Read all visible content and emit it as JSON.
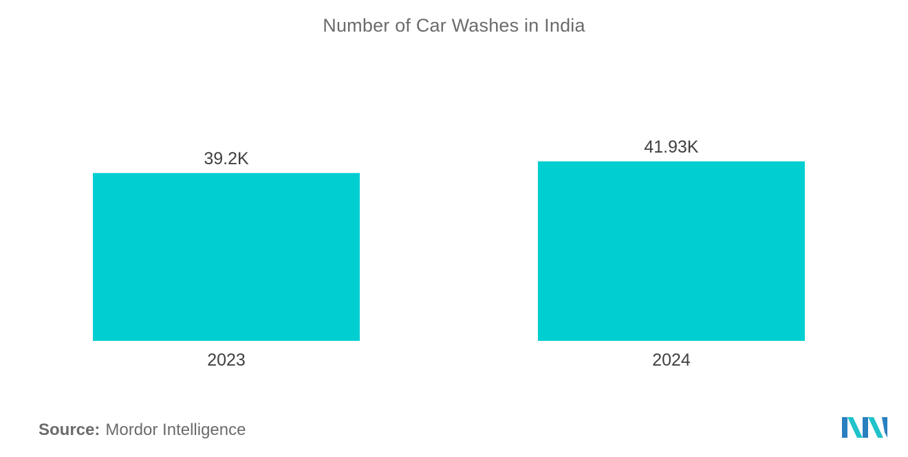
{
  "chart_data": {
    "type": "bar",
    "title": "Number of Car Washes in India",
    "categories": [
      "2023",
      "2024"
    ],
    "values": [
      39.2,
      41.93
    ],
    "value_labels": [
      "39.2K",
      "41.93K"
    ],
    "unit": "K",
    "xlabel": "",
    "ylabel": "",
    "grid": false,
    "legend": "none",
    "bar_color": "#00ced1"
  },
  "footer": {
    "source_label": "Source:",
    "source_value": "Mordor Intelligence"
  },
  "logo": {
    "icon": "mordor-intelligence-logo-icon",
    "colors": [
      "#2a7fbf",
      "#1fc3c9"
    ]
  }
}
